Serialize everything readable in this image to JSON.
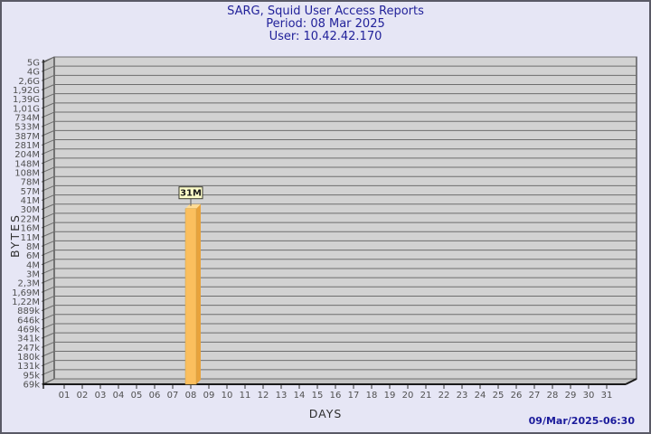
{
  "window": {
    "background_color": "#E6E6F5",
    "border_color": "#5a5a66"
  },
  "header": {
    "title": "SARG, Squid User Access Reports",
    "period_line": "Period: 08 Mar 2025",
    "user_line": "User: 10.42.42.170",
    "title_color": "#22229a"
  },
  "footer": {
    "timestamp": "09/Mar/2025-06:30"
  },
  "chart_data": {
    "type": "bar",
    "title": "SARG, Squid User Access Reports",
    "subtitle": [
      "Period: 08 Mar 2025",
      "User: 10.42.42.170"
    ],
    "xlabel": "DAYS",
    "ylabel": "BYTES",
    "yscale": "log",
    "grid": true,
    "ylim_bytes": [
      69000,
      5000000000
    ],
    "x_categories": [
      "01",
      "02",
      "03",
      "04",
      "05",
      "06",
      "07",
      "08",
      "09",
      "10",
      "11",
      "12",
      "13",
      "14",
      "15",
      "16",
      "17",
      "18",
      "19",
      "20",
      "21",
      "22",
      "23",
      "24",
      "25",
      "26",
      "27",
      "28",
      "29",
      "30",
      "31"
    ],
    "ytick_labels": [
      "5G",
      "4G",
      "2,6G",
      "1,92G",
      "1,39G",
      "1,01G",
      "734M",
      "533M",
      "387M",
      "281M",
      "204M",
      "148M",
      "108M",
      "78M",
      "57M",
      "41M",
      "30M",
      "22M",
      "16M",
      "11M",
      "8M",
      "6M",
      "4M",
      "3M",
      "2,3M",
      "1,69M",
      "1,22M",
      "889k",
      "646k",
      "469k",
      "341k",
      "247k",
      "180k",
      "131k",
      "95k",
      "69k"
    ],
    "bars": [
      {
        "day": "08",
        "label": "31M",
        "value_bytes_approx": 31000000
      }
    ],
    "colors": {
      "panel": "#D2D2D2",
      "wall": "#C4C4C4",
      "gridline": "#6e6e6e",
      "axis": "#1a1a1a",
      "tick_text": "#505050",
      "bar_front": "#FBBF5E",
      "bar_side": "#E8A33C",
      "bar_top": "#FFDC96",
      "value_box_bg": "#FCFCC8",
      "value_box_border": "#3a3a30",
      "value_text": "#1a1a1a"
    }
  }
}
